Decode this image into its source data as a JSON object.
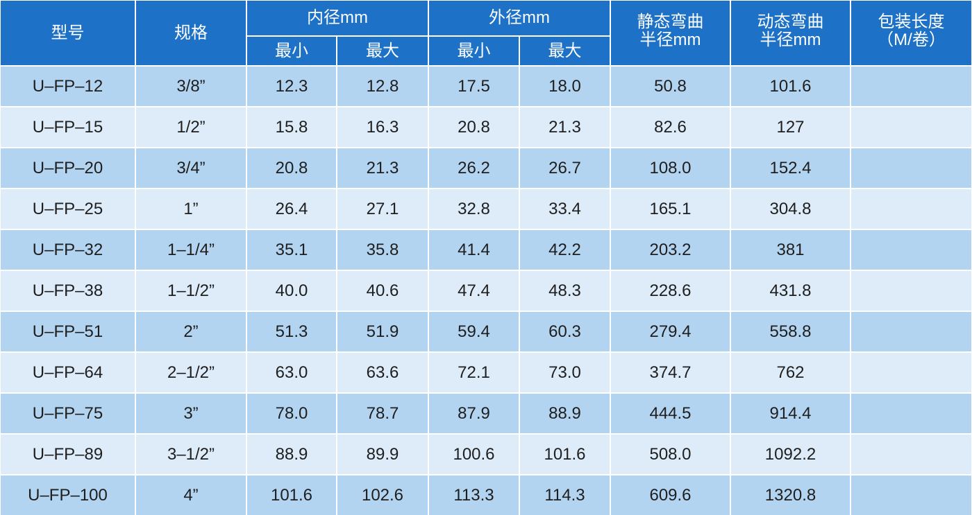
{
  "header": {
    "model": "型号",
    "spec": "规格",
    "groups": [
      {
        "label": "内径mm",
        "sub": [
          "最小",
          "最大"
        ]
      },
      {
        "label": "外径mm",
        "sub": [
          "最小",
          "最大"
        ]
      }
    ],
    "static_radius": [
      "静态弯曲",
      "半径mm"
    ],
    "dynamic_radius": [
      "动态弯曲",
      "半径mm"
    ],
    "package_length": [
      "包装长度",
      "（M/卷）"
    ]
  },
  "table": {
    "rows": [
      [
        "U–FP–12",
        "3/8”",
        "12.3",
        "12.8",
        "17.5",
        "18.0",
        "50.8",
        "101.6"
      ],
      [
        "U–FP–15",
        "1/2”",
        "15.8",
        "16.3",
        "20.8",
        "21.3",
        "82.6",
        "127"
      ],
      [
        "U–FP–20",
        "3/4”",
        "20.8",
        "21.3",
        "26.2",
        "26.7",
        "108.0",
        "152.4"
      ],
      [
        "U–FP–25",
        "1”",
        "26.4",
        "27.1",
        "32.8",
        "33.4",
        "165.1",
        "304.8"
      ],
      [
        "U–FP–32",
        "1–1/4”",
        "35.1",
        "35.8",
        "41.4",
        "42.2",
        "203.2",
        "381"
      ],
      [
        "U–FP–38",
        "1–1/2”",
        "40.0",
        "40.6",
        "47.4",
        "48.3",
        "228.6",
        "431.8"
      ],
      [
        "U–FP–51",
        "2”",
        "51.3",
        "51.9",
        "59.4",
        "60.3",
        "279.4",
        "558.8"
      ],
      [
        "U–FP–64",
        "2–1/2”",
        "63.0",
        "63.6",
        "72.1",
        "73.0",
        "374.7",
        "762"
      ],
      [
        "U–FP–75",
        "3”",
        "78.0",
        "78.7",
        "87.9",
        "88.9",
        "444.5",
        "914.4"
      ],
      [
        "U–FP–89",
        "3–1/2”",
        "88.9",
        "89.9",
        "100.6",
        "101.6",
        "508.0",
        "1092.2"
      ],
      [
        "U–FP–100",
        "4”",
        "101.6",
        "102.6",
        "113.3",
        "114.3",
        "609.6",
        "1320.8"
      ]
    ]
  }
}
